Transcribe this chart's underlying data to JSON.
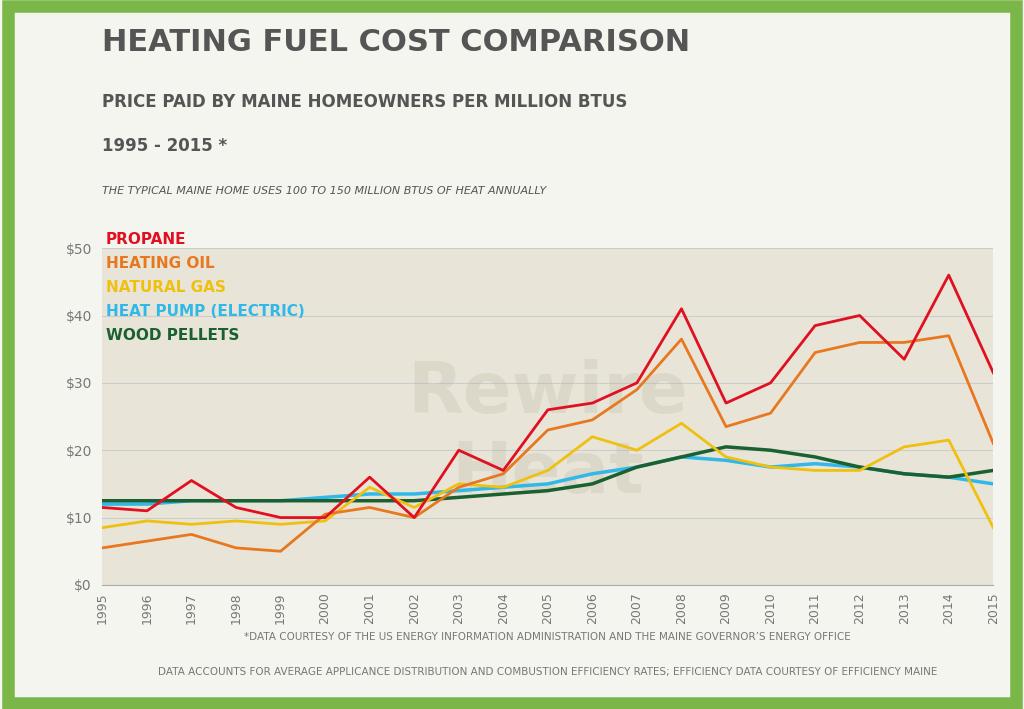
{
  "title": "HEATING FUEL COST COMPARISON",
  "subtitle1": "PRICE PAID BY MAINE HOMEOWNERS PER MILLION BTUS",
  "subtitle2": "1995 - 2015 *",
  "subtitle3": "THE TYPICAL MAINE HOME USES 100 TO 150 MILLION BTUS OF HEAT ANNUALLY",
  "footnote1": "*DATA COURTESY OF THE US ENERGY INFORMATION ADMINISTRATION AND THE MAINE GOVERNOR’S ENERGY OFFICE",
  "footnote2": "DATA ACCOUNTS FOR AVERAGE APPLICANCE DISTRIBUTION AND COMBUSTION EFFICIENCY RATES; EFFICIENCY DATA COURTESY OF EFFICIENCY MAINE",
  "bg_outer": "#f5f5f0",
  "bg_chart": "#e8e5d8",
  "border_color": "#7ab648",
  "grid_color": "#cccccc",
  "title_color": "#555555",
  "legend_colors": {
    "PROPANE": "#e01020",
    "HEATING OIL": "#e87820",
    "NATURAL GAS": "#f0c010",
    "HEAT PUMP (ELECTRIC)": "#30b8e8",
    "WOOD PELLETS": "#1a6030"
  },
  "years": [
    1995,
    1996,
    1997,
    1998,
    1999,
    2000,
    2001,
    2002,
    2003,
    2004,
    2005,
    2006,
    2007,
    2008,
    2009,
    2010,
    2011,
    2012,
    2013,
    2014,
    2015
  ],
  "propane": [
    11.5,
    11.0,
    15.5,
    11.5,
    10.0,
    10.0,
    16.0,
    10.0,
    20.0,
    17.0,
    26.0,
    27.0,
    30.0,
    41.0,
    27.0,
    30.0,
    38.5,
    40.0,
    33.5,
    46.0,
    31.5
  ],
  "heating_oil": [
    5.5,
    6.5,
    7.5,
    5.5,
    5.0,
    10.5,
    11.5,
    10.0,
    14.5,
    16.5,
    23.0,
    24.5,
    29.0,
    36.5,
    23.5,
    25.5,
    34.5,
    36.0,
    36.0,
    37.0,
    21.0
  ],
  "natural_gas": [
    8.5,
    9.5,
    9.0,
    9.5,
    9.0,
    9.5,
    14.5,
    11.5,
    15.0,
    14.5,
    17.0,
    22.0,
    20.0,
    24.0,
    19.0,
    17.5,
    17.0,
    17.0,
    20.5,
    21.5,
    8.5
  ],
  "heat_pump": [
    12.0,
    12.0,
    12.5,
    12.5,
    12.5,
    13.0,
    13.5,
    13.5,
    14.0,
    14.5,
    15.0,
    16.5,
    17.5,
    19.0,
    18.5,
    17.5,
    18.0,
    17.5,
    16.5,
    16.0,
    15.0
  ],
  "wood_pellets": [
    12.5,
    12.5,
    12.5,
    12.5,
    12.5,
    12.5,
    12.5,
    12.5,
    13.0,
    13.5,
    14.0,
    15.0,
    17.5,
    19.0,
    20.5,
    20.0,
    19.0,
    17.5,
    16.5,
    16.0,
    17.0
  ],
  "ylim": [
    0,
    50
  ],
  "yticks": [
    0,
    10,
    20,
    30,
    40,
    50
  ]
}
